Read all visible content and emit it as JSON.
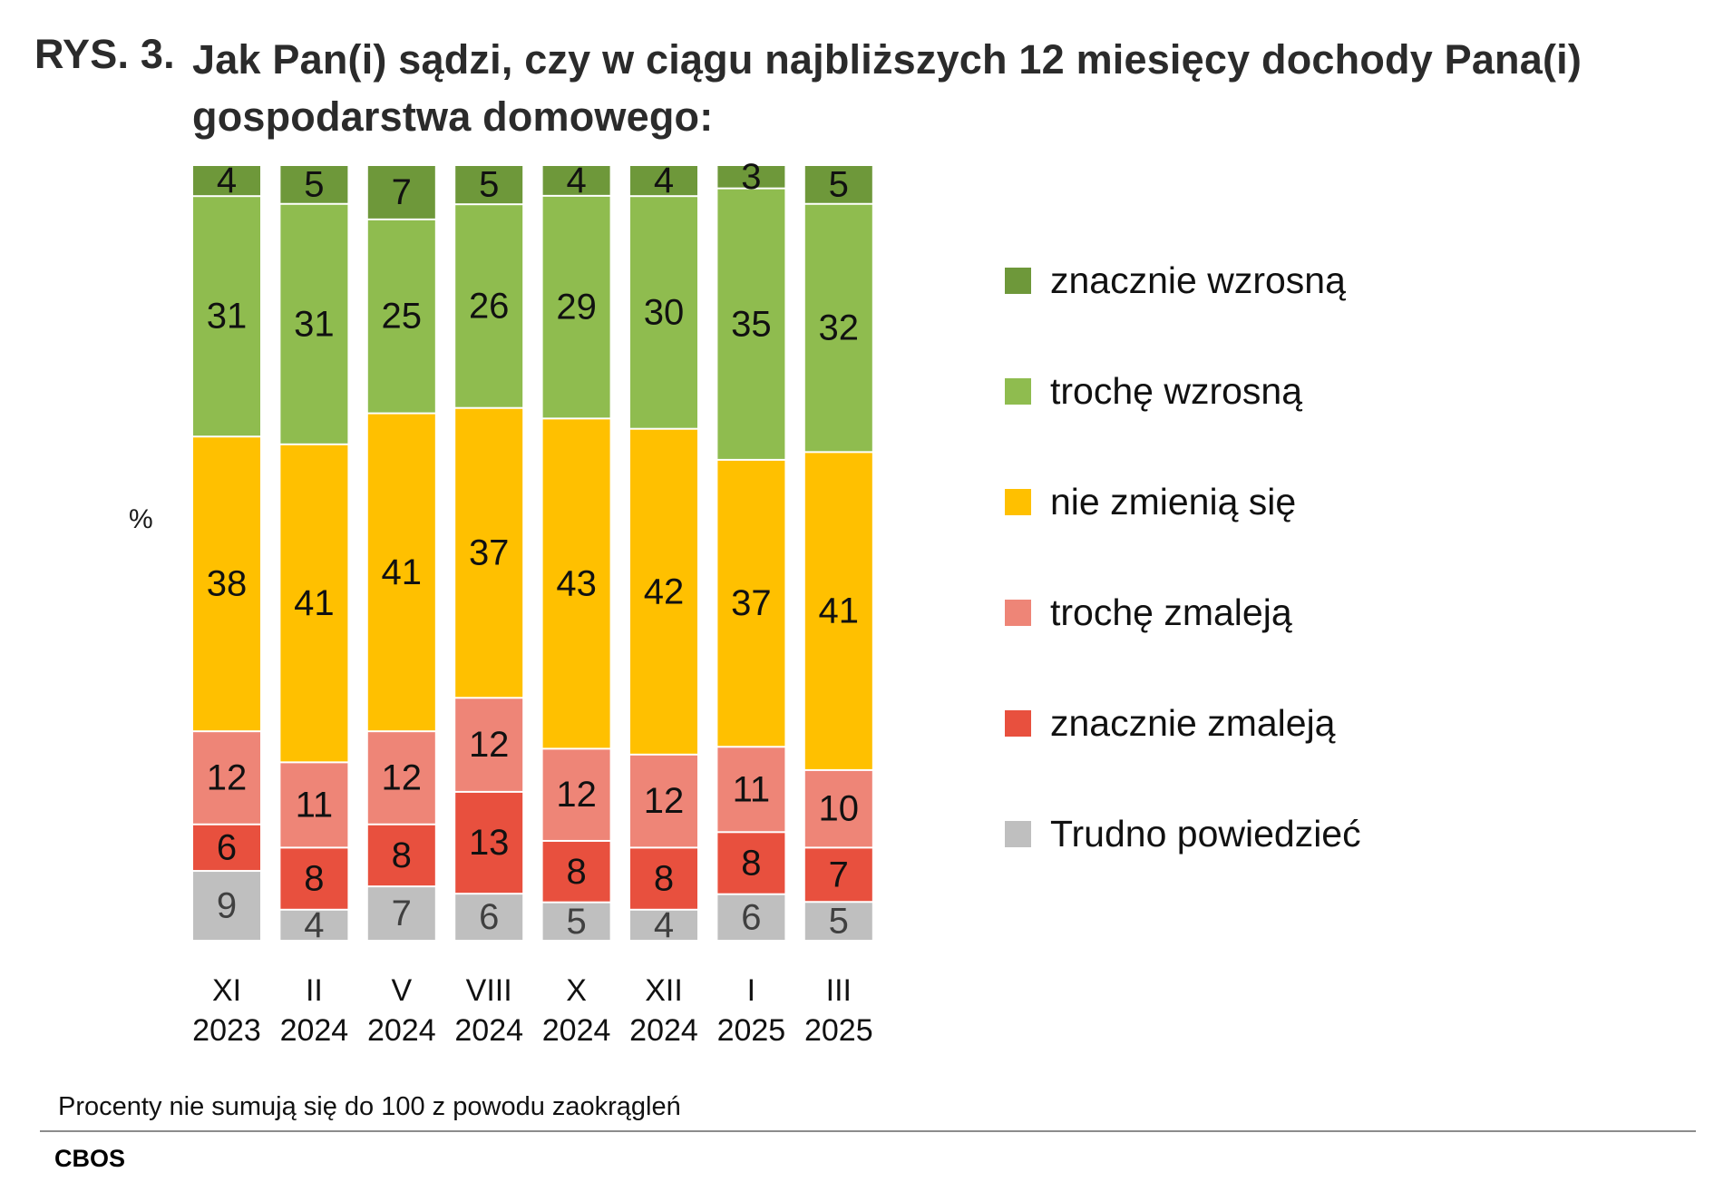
{
  "title": {
    "number": "RYS. 3.",
    "text": "Jak Pan(i) sądzi, czy w ciągu najbliższych 12 miesięcy dochody Pana(i) gospodarstwa domowego:"
  },
  "chart_data": {
    "type": "bar",
    "stacked": true,
    "orientation": "vertical",
    "title": "RYS. 3. Jak Pan(i) sądzi, czy w ciągu najbliższych 12 miesięcy dochody Pana(i) gospodarstwa domowego:",
    "ylabel": "%",
    "xlabel": "",
    "categories": [
      [
        "XI",
        "2023"
      ],
      [
        "II",
        "2024"
      ],
      [
        "V",
        "2024"
      ],
      [
        "VIII",
        "2024"
      ],
      [
        "X",
        "2024"
      ],
      [
        "XII",
        "2024"
      ],
      [
        "I",
        "2025"
      ],
      [
        "III",
        "2025"
      ]
    ],
    "series": [
      {
        "name": "Trudno powiedzieć",
        "color": "#BFBFBF",
        "label_color": "#404040",
        "values": [
          9,
          4,
          7,
          6,
          5,
          4,
          6,
          5
        ]
      },
      {
        "name": "znacznie zmaleją",
        "color": "#E8503E",
        "label_color": "#111111",
        "values": [
          6,
          8,
          8,
          13,
          8,
          8,
          8,
          7
        ]
      },
      {
        "name": "trochę zmaleją",
        "color": "#EE8577",
        "label_color": "#111111",
        "values": [
          12,
          11,
          12,
          12,
          12,
          12,
          11,
          10
        ]
      },
      {
        "name": "nie zmienią się",
        "color": "#FFC000",
        "label_color": "#111111",
        "values": [
          38,
          41,
          41,
          37,
          43,
          42,
          37,
          41
        ]
      },
      {
        "name": "trochę wzrosną",
        "color": "#8FBC4F",
        "label_color": "#111111",
        "values": [
          31,
          31,
          25,
          26,
          29,
          30,
          35,
          32
        ]
      },
      {
        "name": "znacznie wzrosną",
        "color": "#6E983A",
        "label_color": "#111111",
        "values": [
          4,
          5,
          7,
          5,
          4,
          4,
          3,
          5
        ]
      }
    ],
    "legend": {
      "position": "right",
      "order": [
        "znacznie wzrosną",
        "trochę wzrosną",
        "nie zmienią się",
        "trochę zmaleją",
        "znacznie zmaleją",
        "Trudno powiedzieć"
      ]
    },
    "grid": false
  },
  "note": "Procenty nie sumują się do 100 z powodu zaokrągleń",
  "source": "CBOS"
}
